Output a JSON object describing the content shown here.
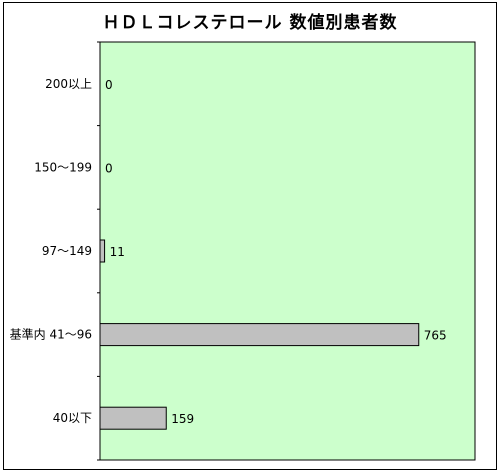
{
  "chart_data": {
    "type": "bar",
    "orientation": "horizontal",
    "title": "ＨＤＬコレステロール 数値別患者数",
    "categories": [
      "200以上",
      "150〜199",
      "97〜149",
      "基準内 41〜96",
      "40以下"
    ],
    "values": [
      0,
      0,
      11,
      765,
      159
    ],
    "data_labels": [
      "0",
      "0",
      "11",
      "765",
      "159"
    ],
    "xlim": [
      0,
      900
    ],
    "grid": false,
    "legend": "none",
    "colors": {
      "plot_background": "#ccffcc",
      "bar_fill": "#c0c0c0",
      "bar_stroke": "#000000",
      "axis": "#000000"
    }
  }
}
